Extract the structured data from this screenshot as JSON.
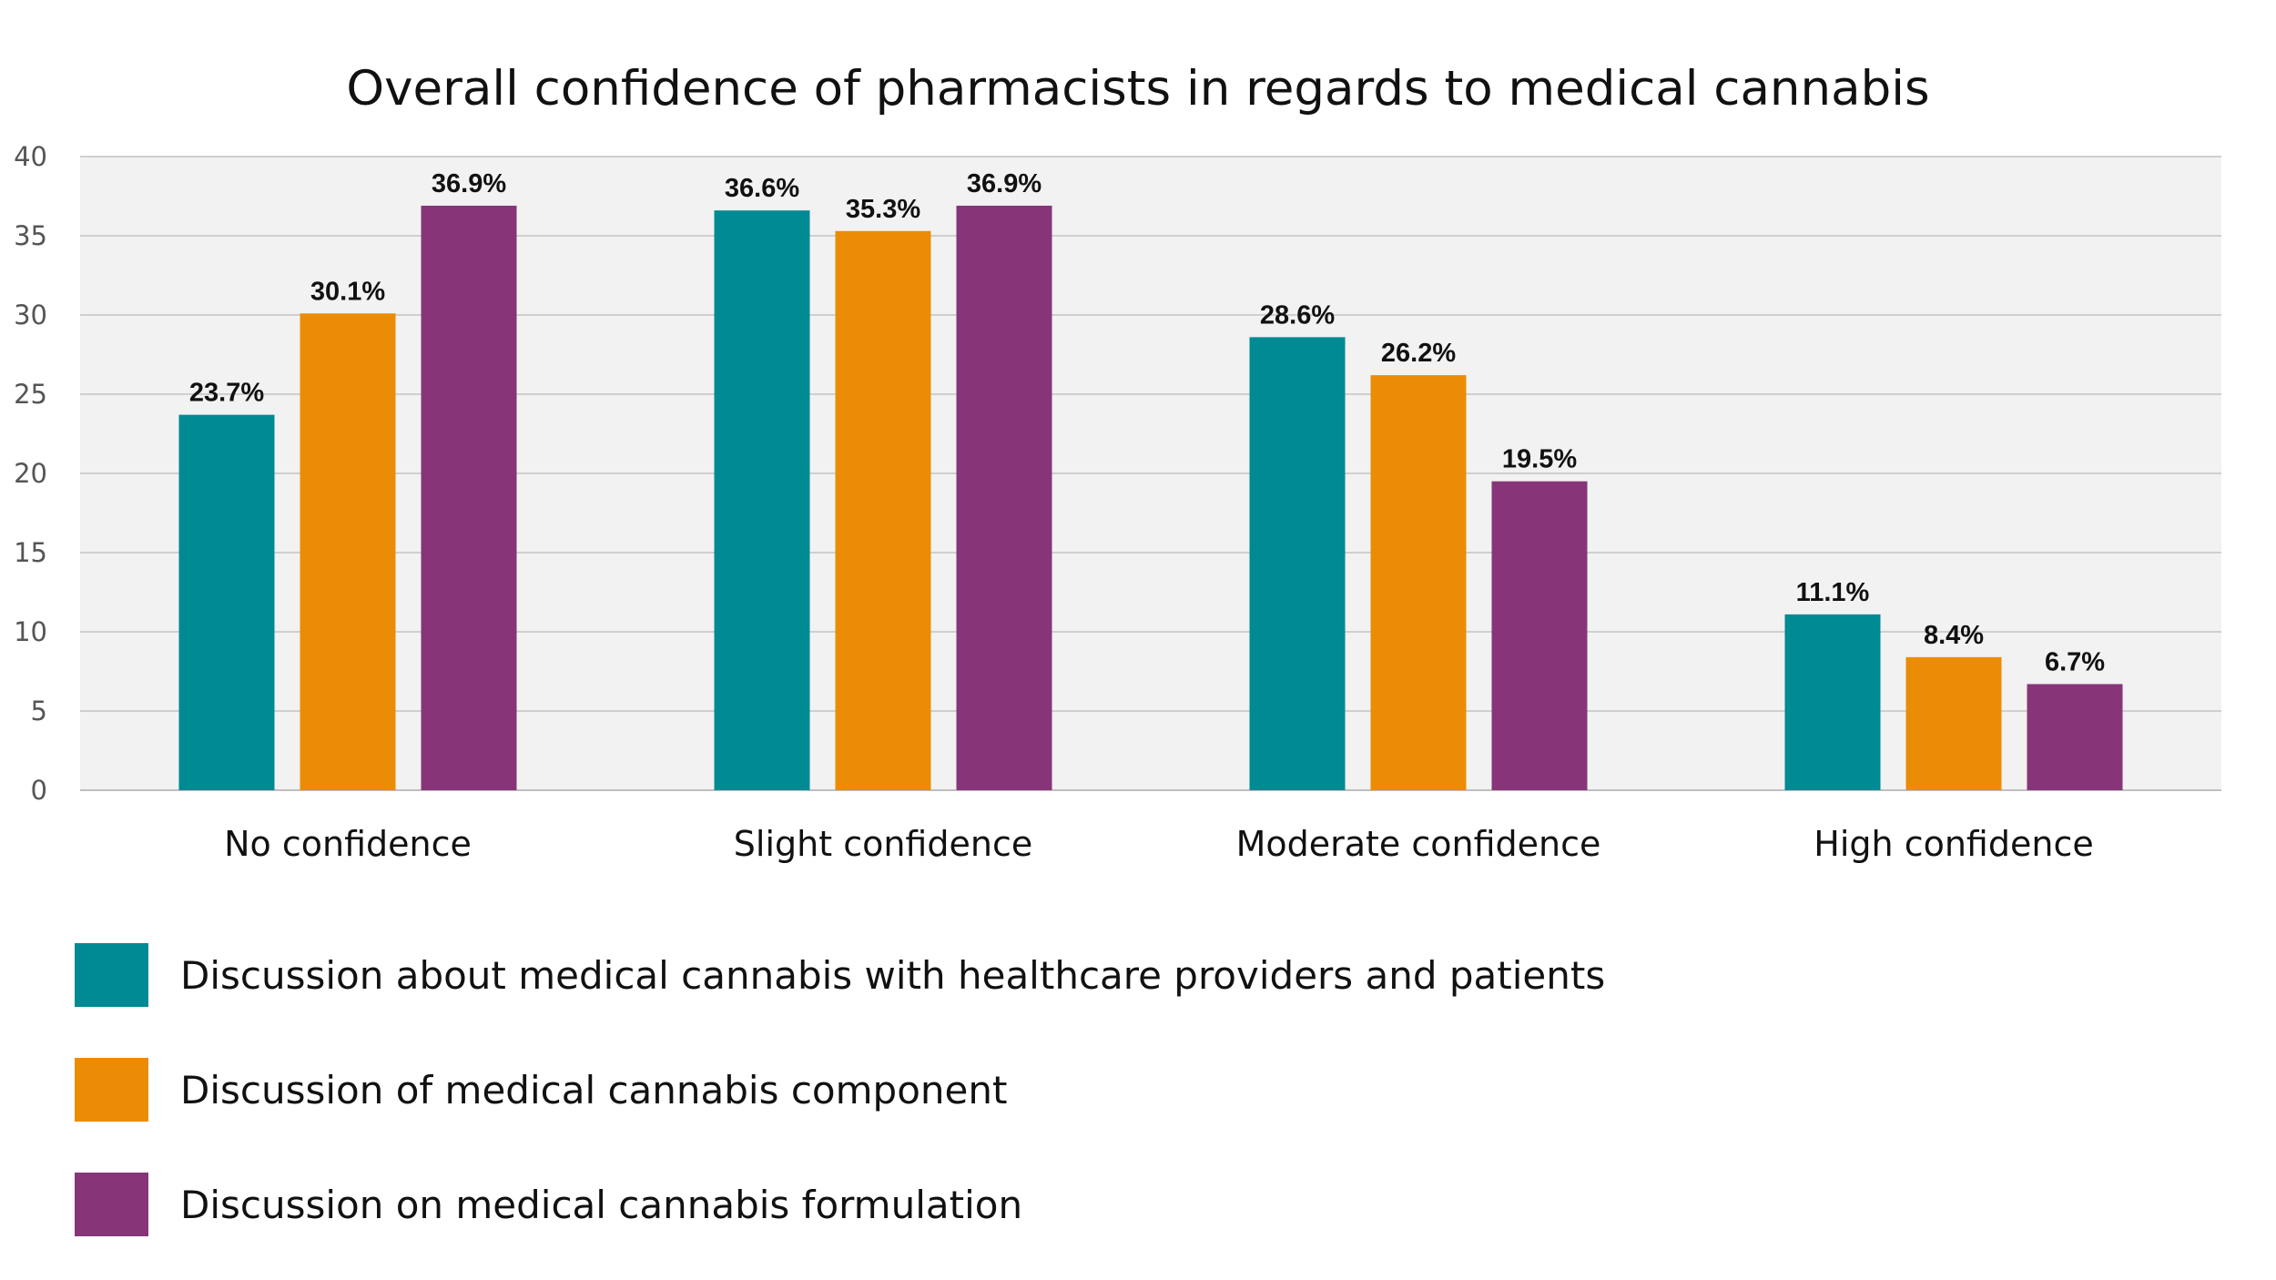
{
  "chart_data": {
    "type": "bar",
    "title": "Overall confidence of pharmacists in regards to medical cannabis",
    "categories": [
      "No confidence",
      "Slight confidence",
      "Moderate confidence",
      "High confidence"
    ],
    "series": [
      {
        "name": "Discussion about medical cannabis with healthcare providers and patients",
        "color": "#008A94",
        "values": [
          23.7,
          36.6,
          28.6,
          11.1
        ],
        "labels": [
          "23.7%",
          "36.6%",
          "28.6%",
          "11.1%"
        ]
      },
      {
        "name": "Discussion of medical cannabis component",
        "color": "#EB8C06",
        "values": [
          30.1,
          35.3,
          26.2,
          8.4
        ],
        "labels": [
          "30.1%",
          "35.3%",
          "26.2%",
          "8.4%"
        ]
      },
      {
        "name": "Discussion on medical cannabis formulation",
        "color": "#873578",
        "values": [
          36.9,
          36.9,
          19.5,
          6.7
        ],
        "labels": [
          "36.9%",
          "36.9%",
          "19.5%",
          "6.7%"
        ]
      }
    ],
    "yticks": [
      "0",
      "5",
      "10",
      "15",
      "20",
      "25",
      "30",
      "35",
      "40"
    ],
    "ylim": [
      0,
      40
    ],
    "xlabel": "",
    "ylabel": "",
    "grid": true,
    "plot_background": "#F2F2F2",
    "legend_position": "bottom-left"
  }
}
